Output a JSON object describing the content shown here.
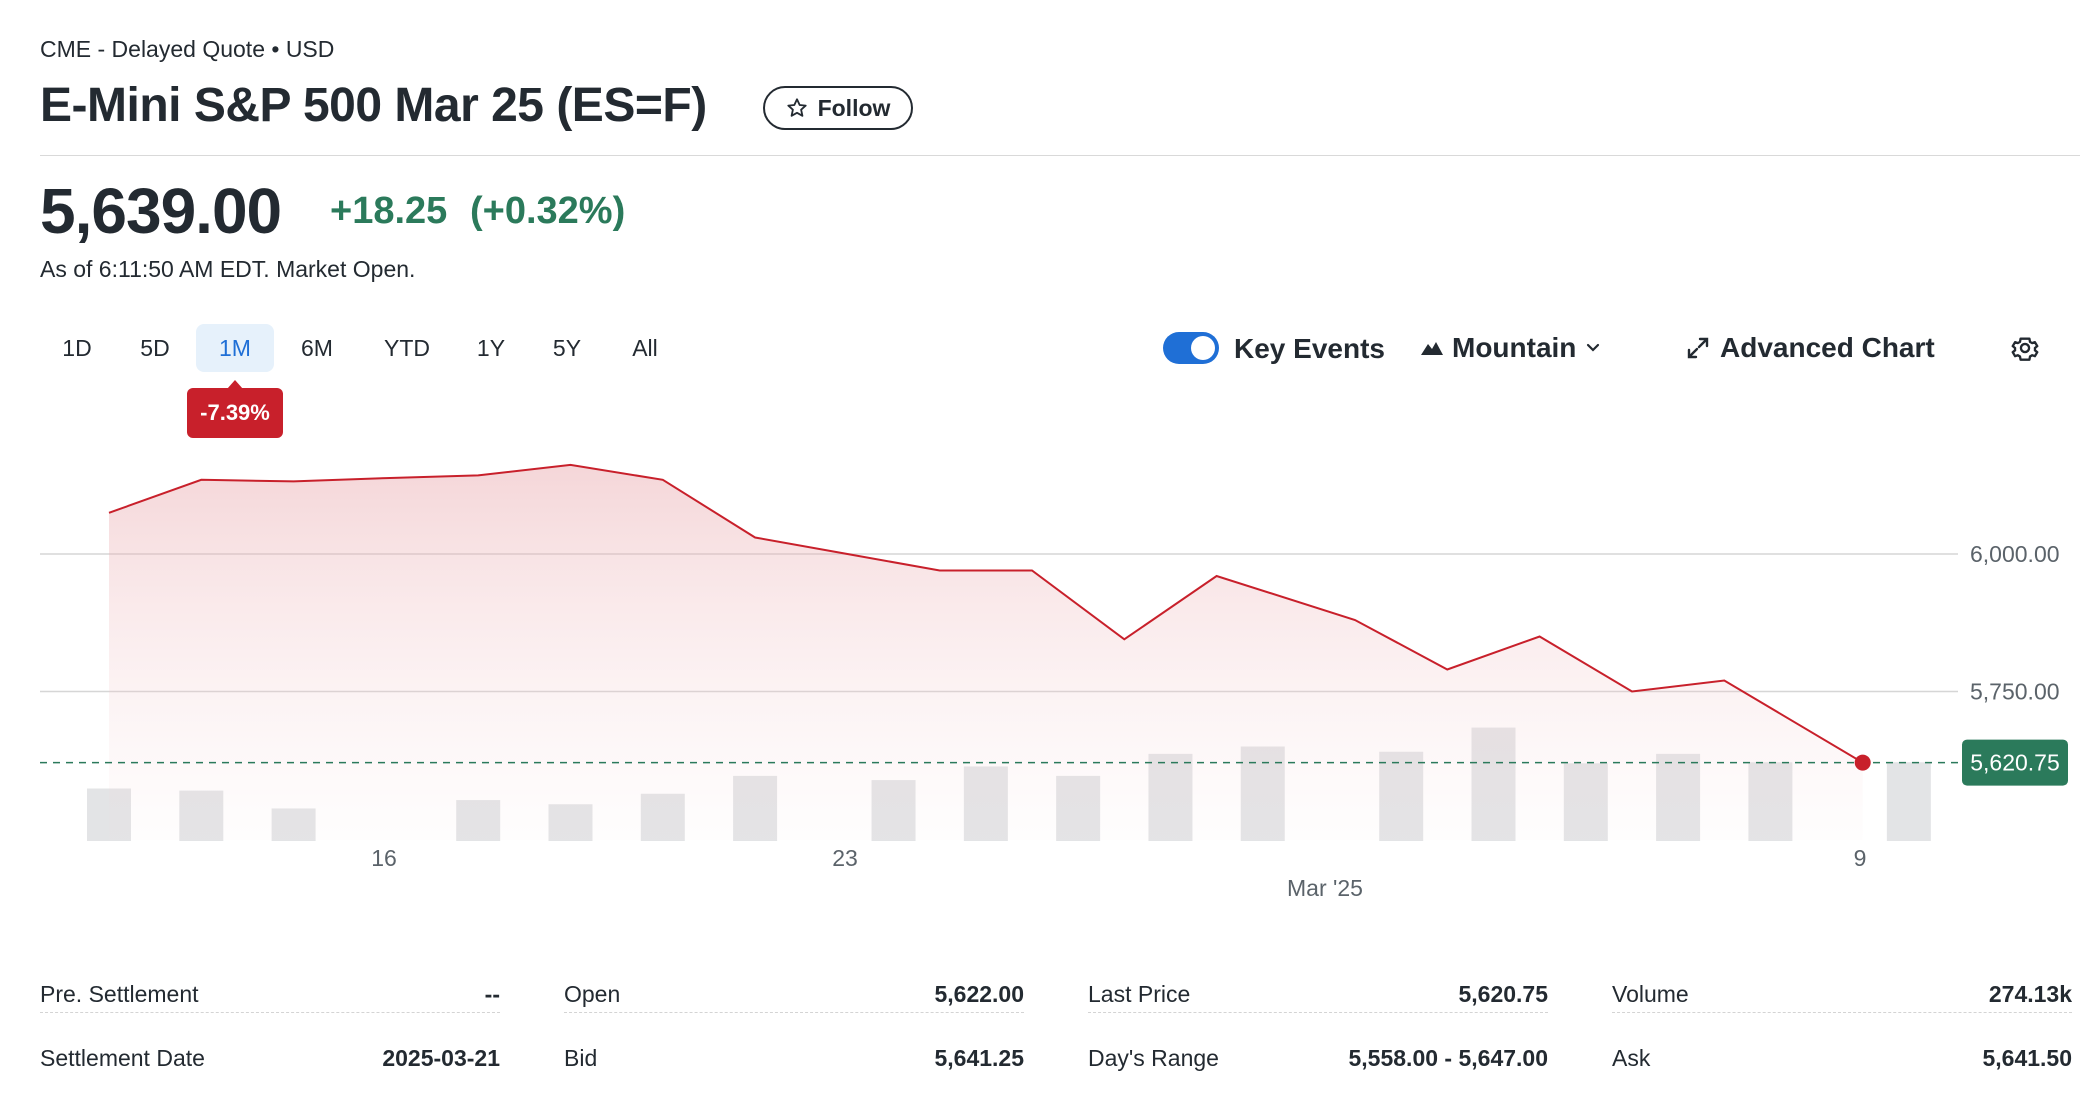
{
  "header": {
    "source": "CME - Delayed Quote • USD",
    "title": "E-Mini S&P 500 Mar 25 (ES=F)",
    "follow_label": "Follow"
  },
  "quote": {
    "price": "5,639.00",
    "change": "+18.25",
    "change_pct": "(+0.32%)",
    "as_of": "As of 6:11:50 AM EDT. Market Open.",
    "change_color": "#2b7a5b"
  },
  "range_tabs": {
    "items": [
      "1D",
      "5D",
      "1M",
      "6M",
      "YTD",
      "1Y",
      "5Y",
      "All"
    ],
    "active": "1M",
    "active_change": "-7.39%"
  },
  "controls": {
    "key_events_label": "Key Events",
    "key_events_on": true,
    "chart_type_label": "Mountain",
    "advanced_label": "Advanced Chart"
  },
  "chart_data": {
    "type": "area",
    "ylim": [
      5480,
      6280
    ],
    "y_ticks": [
      {
        "value": 6000,
        "label": "6,000.00"
      },
      {
        "value": 5750,
        "label": "5,750.00"
      }
    ],
    "x_ticks": [
      {
        "index": 3,
        "label": "16"
      },
      {
        "index": 8,
        "label": "23"
      },
      {
        "index": 13.5,
        "label": "Mar '25"
      },
      {
        "index": 19.5,
        "label": "9"
      }
    ],
    "x_axis_sublabel": "Mar '25",
    "price": [
      6075,
      6135,
      6132,
      6138,
      6143,
      6162,
      6135,
      6030,
      6000,
      5970,
      5970,
      5845,
      5960,
      5880,
      5790,
      5850,
      5750,
      5770,
      5620.75
    ],
    "price_x": [
      0,
      1,
      2,
      3,
      4,
      5,
      6,
      7,
      8,
      9,
      10,
      11,
      12,
      13.5,
      14.5,
      15.5,
      16.5,
      17.5,
      19
    ],
    "volume_x": [
      0,
      1,
      2,
      4,
      5,
      6,
      7,
      8.5,
      9.5,
      10.5,
      11.5,
      12.5,
      14,
      15,
      16,
      17,
      18,
      19.5
    ],
    "volume": [
      0.5,
      0.48,
      0.31,
      0.39,
      0.35,
      0.45,
      0.62,
      0.58,
      0.71,
      0.62,
      0.83,
      0.9,
      0.85,
      1.08,
      0.74,
      0.83,
      0.75,
      0.75
    ],
    "last_price_label": "5,620.75",
    "series_color": "#c8202b",
    "last_tag_color": "#2b7a5b"
  },
  "stats": {
    "col1": [
      {
        "label": "Pre. Settlement",
        "value": "--"
      },
      {
        "label": "Settlement Date",
        "value": "2025-03-21"
      }
    ],
    "col2": [
      {
        "label": "Open",
        "value": "5,622.00"
      },
      {
        "label": "Bid",
        "value": "5,641.25"
      }
    ],
    "col3": [
      {
        "label": "Last Price",
        "value": "5,620.75"
      },
      {
        "label": "Day's Range",
        "value": "5,558.00 - 5,647.00"
      }
    ],
    "col4": [
      {
        "label": "Volume",
        "value": "274.13k"
      },
      {
        "label": "Ask",
        "value": "5,641.50"
      }
    ]
  }
}
